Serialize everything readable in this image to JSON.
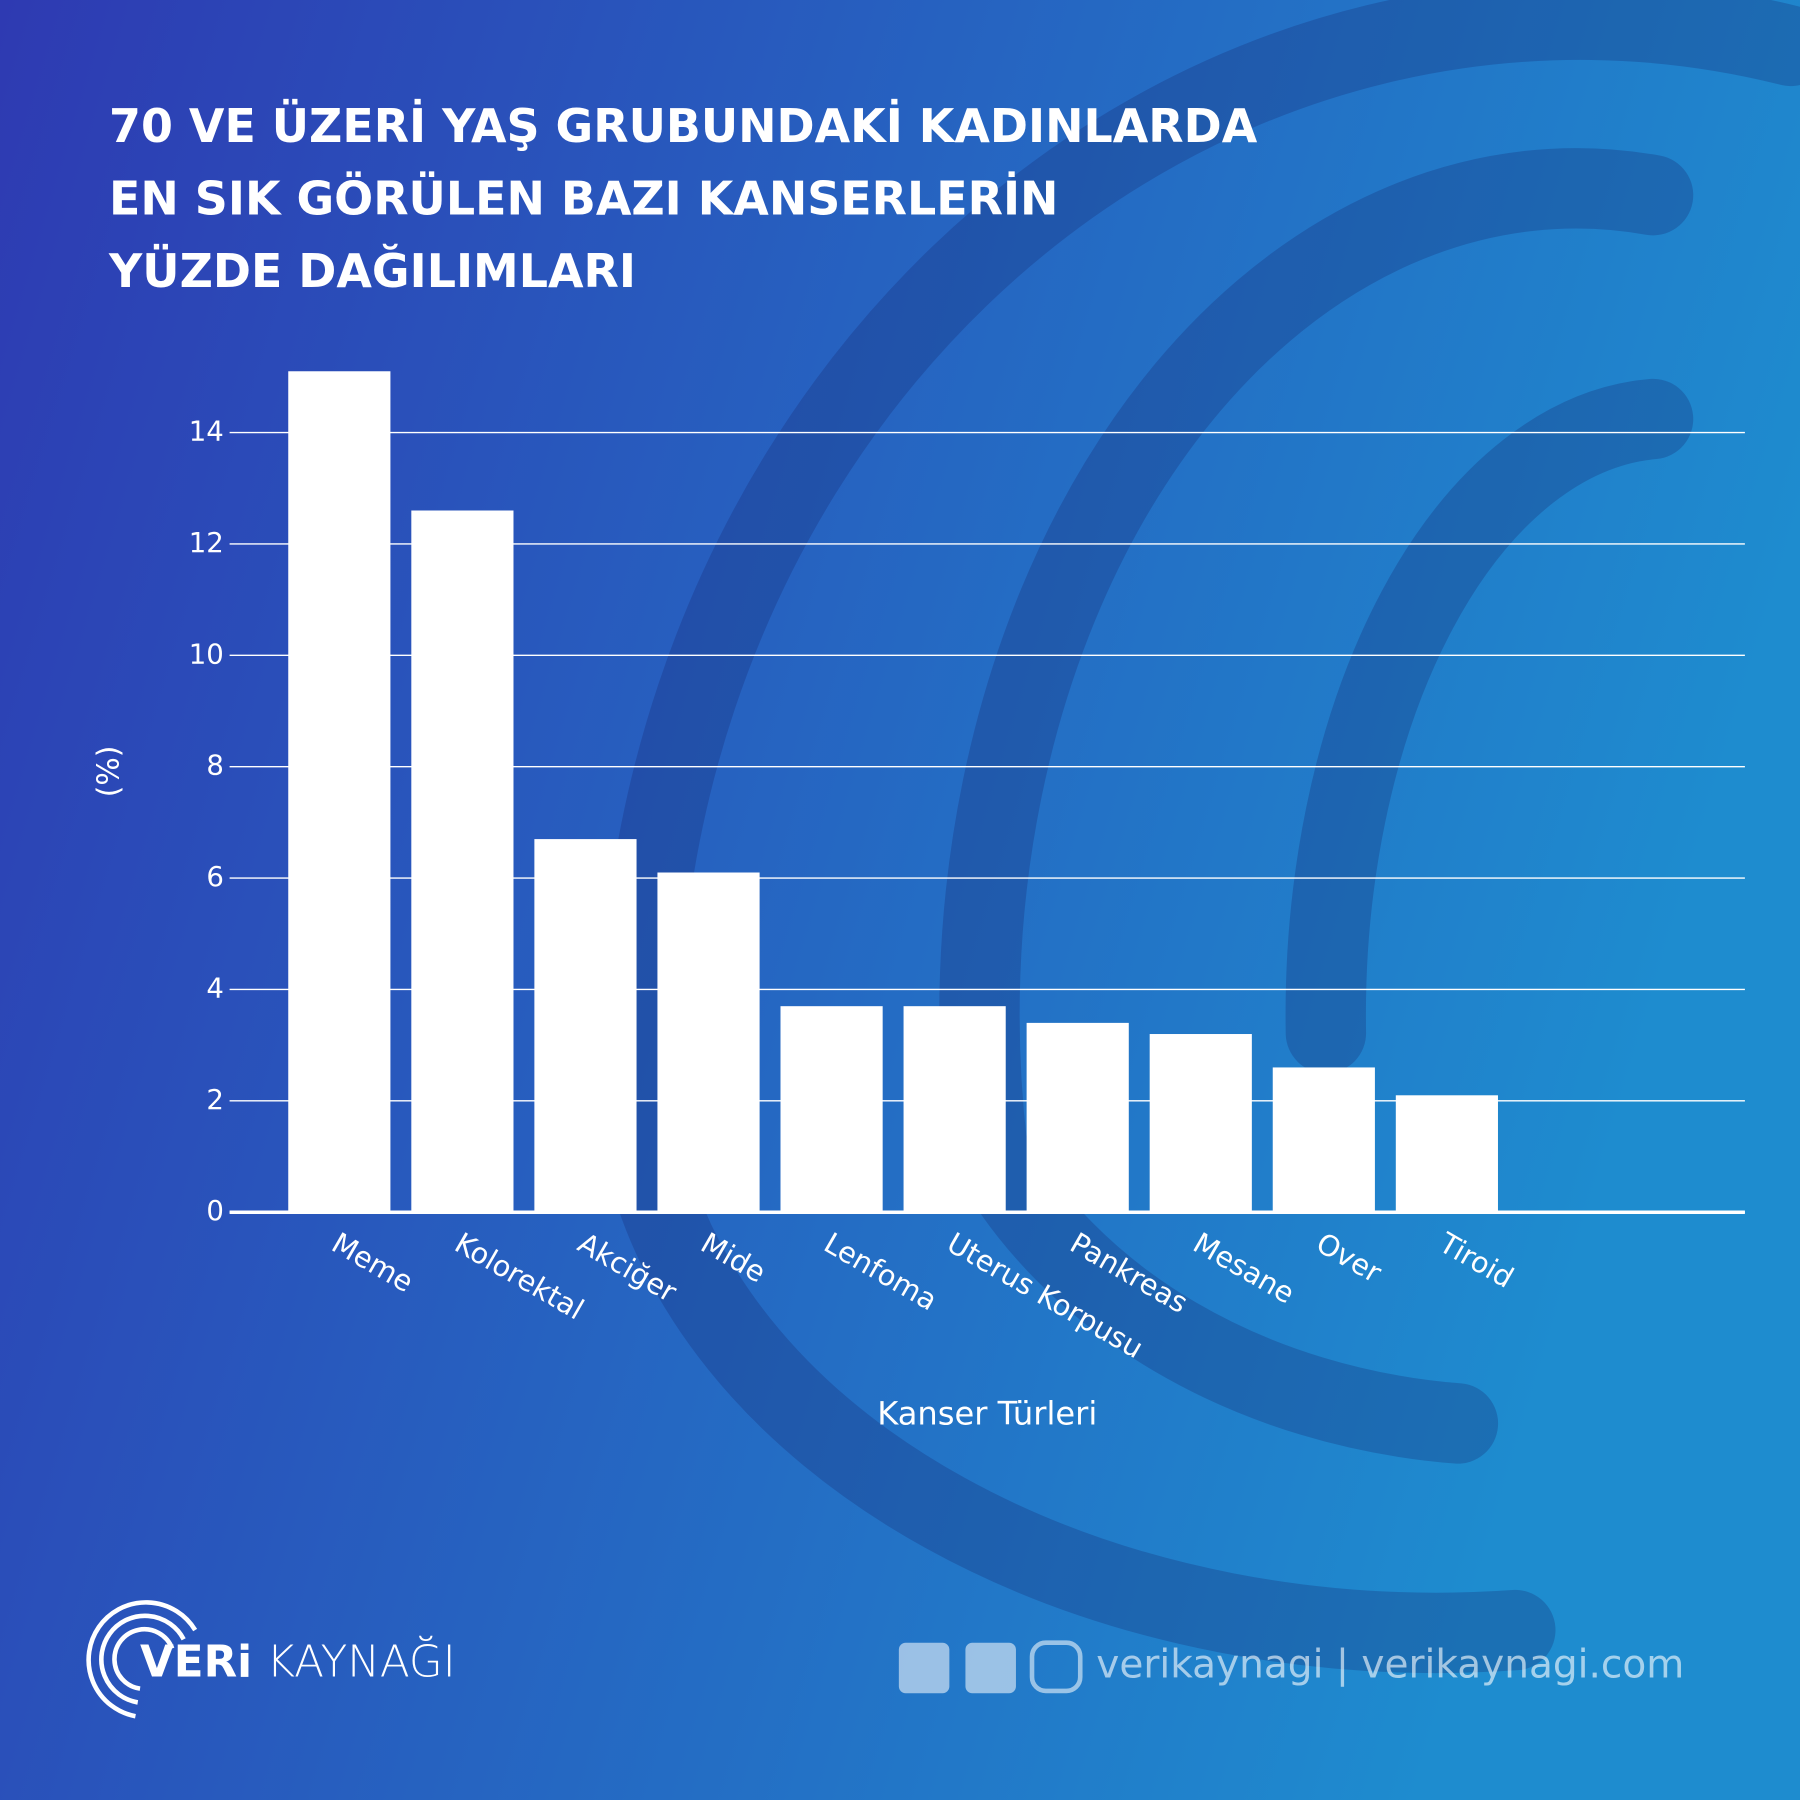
{
  "chart_data": {
    "type": "bar",
    "title": [
      "70 VE ÜZERİ YAŞ GRUBUNDAKİ KADINLARDA",
      "EN SIK GÖRÜLEN BAZI KANSERLERİN",
      "YÜZDE DAĞILIMLARI"
    ],
    "x_label": "Kanser Türleri",
    "y_label": "(%)",
    "categories": [
      "Meme",
      "Kolorektal",
      "Akciğer",
      "Mide",
      "Lenfoma",
      "Uterus Korpusu",
      "Pankreas",
      "Mesane",
      "Over",
      "Tiroid"
    ],
    "values": [
      15.1,
      12.6,
      6.7,
      6.1,
      3.7,
      3.7,
      3.4,
      3.2,
      2.6,
      2.1
    ],
    "color": "#ffffff",
    "ylim": [
      0,
      15.5
    ],
    "yticks": [
      0,
      2,
      4,
      6,
      8,
      10,
      12,
      14
    ],
    "grid": true
  },
  "footer": {
    "brand": [
      "VERi",
      "KAYNAĞI"
    ],
    "handle": "verikaynagi | verikaynagi.com"
  }
}
